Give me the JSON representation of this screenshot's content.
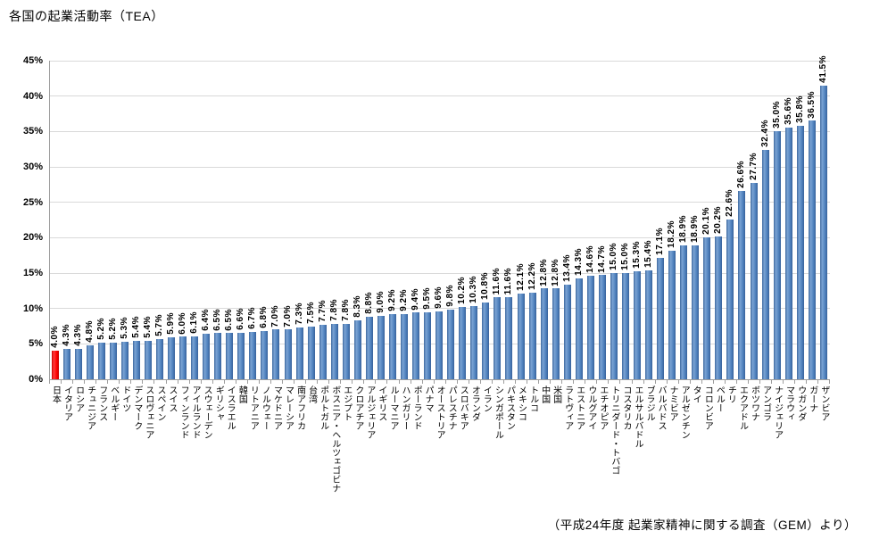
{
  "title": "各国の起業活動率（TEA）",
  "caption": "（平成24年度 起業家精神に関する調査（GEM）より）",
  "chart_data": {
    "type": "bar",
    "title": "各国の起業活動率（TEA）",
    "xlabel": "",
    "ylabel": "",
    "ylim": [
      0,
      45
    ],
    "ytick_step": 5,
    "ytick_suffix": "%",
    "grid": true,
    "legend": "none",
    "bar_color": "#4f81bd",
    "highlight_color": "#ff0000",
    "highlight_index": 0,
    "value_label_suffix": "%",
    "categories": [
      "日本",
      "イタリア",
      "ロシア",
      "チュニジア",
      "フランス",
      "ベルギー",
      "ドイツ",
      "デンマーク",
      "スロヴェニア",
      "スペイン",
      "スイス",
      "フィンランド",
      "アイルランド",
      "スウェーデン",
      "ギリシャ",
      "イスラエル",
      "韓国",
      "リトアニア",
      "ノルウェー",
      "マケドニア",
      "マレーシア",
      "南アフリカ",
      "台湾",
      "ポルトガル",
      "ボスニア・ヘルツェゴビナ",
      "エジプト",
      "クロアチア",
      "アルジェリア",
      "イギリス",
      "ルーマニア",
      "ハンガリー",
      "ポーランド",
      "パナマ",
      "オーストリア",
      "パレスチナ",
      "スロバキア",
      "オランダ",
      "イラン",
      "シンガポール",
      "パキスタン",
      "メキシコ",
      "トルコ",
      "中国",
      "米国",
      "ラトヴィア",
      "エストニア",
      "ウルグアイ",
      "エチオピア",
      "トリニダード・トバゴ",
      "コスタリカ",
      "エルサルバドル",
      "ブラジル",
      "バルバドス",
      "ナミビア",
      "アルゼンチン",
      "タイ",
      "コロンビア",
      "ペルー",
      "チリ",
      "エクアドル",
      "ボツワナ",
      "アンゴラ",
      "ナイジェリア",
      "マラウィ",
      "ウガンダ",
      "ガーナ",
      "ザンビア"
    ],
    "values": [
      4.0,
      4.3,
      4.3,
      4.8,
      5.2,
      5.2,
      5.3,
      5.4,
      5.4,
      5.7,
      5.9,
      6.0,
      6.1,
      6.4,
      6.5,
      6.5,
      6.6,
      6.7,
      6.8,
      7.0,
      7.0,
      7.3,
      7.5,
      7.7,
      7.8,
      7.8,
      8.3,
      8.8,
      9.0,
      9.2,
      9.2,
      9.4,
      9.5,
      9.6,
      9.8,
      10.2,
      10.3,
      10.8,
      11.6,
      11.6,
      12.1,
      12.2,
      12.8,
      12.8,
      13.4,
      14.3,
      14.6,
      14.7,
      15.0,
      15.0,
      15.3,
      15.4,
      17.1,
      18.2,
      18.9,
      18.9,
      20.1,
      20.2,
      22.6,
      26.6,
      27.7,
      32.4,
      35.0,
      35.6,
      35.8,
      36.5,
      41.5
    ]
  }
}
